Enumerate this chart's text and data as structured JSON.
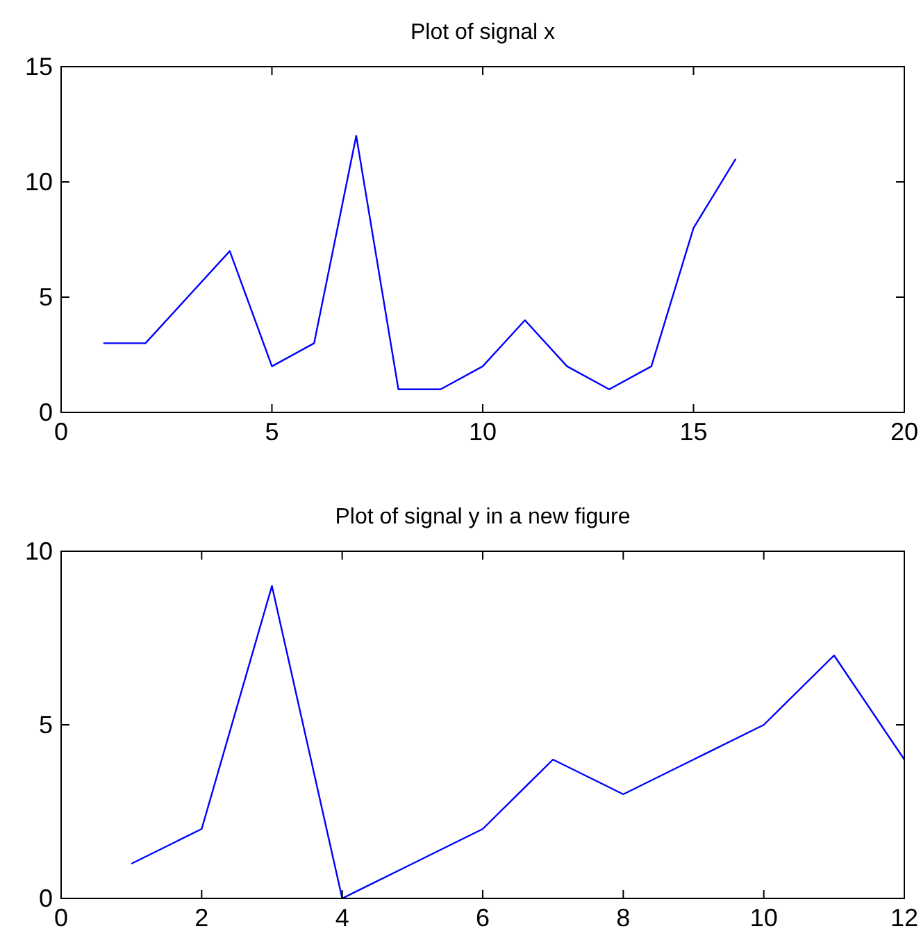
{
  "chart_data": [
    {
      "type": "line",
      "title": "Plot of signal x",
      "x": [
        1,
        2,
        3,
        4,
        5,
        6,
        7,
        8,
        9,
        10,
        11,
        12,
        13,
        14,
        15,
        16
      ],
      "series": [
        {
          "color": "#0000ff",
          "values": [
            3,
            3,
            5,
            7,
            2,
            3,
            12,
            1,
            1,
            2,
            4,
            2,
            1,
            2,
            8,
            11
          ]
        }
      ],
      "xlim": [
        0,
        20
      ],
      "xticks": [
        0,
        5,
        10,
        15,
        20
      ],
      "ylim": [
        0,
        15
      ],
      "yticks": [
        0,
        5,
        10,
        15
      ]
    },
    {
      "type": "line",
      "title": "Plot of signal y in a new figure",
      "x": [
        1,
        2,
        3,
        4,
        5,
        6,
        7,
        8,
        9,
        10,
        11,
        12
      ],
      "series": [
        {
          "color": "#0000ff",
          "values": [
            1,
            2,
            9,
            0,
            1,
            2,
            4,
            3,
            4,
            5,
            7,
            4
          ]
        }
      ],
      "xlim": [
        0,
        12
      ],
      "xticks": [
        0,
        2,
        4,
        6,
        8,
        10,
        12
      ],
      "ylim": [
        0,
        10
      ],
      "yticks": [
        0,
        5,
        10
      ]
    }
  ]
}
